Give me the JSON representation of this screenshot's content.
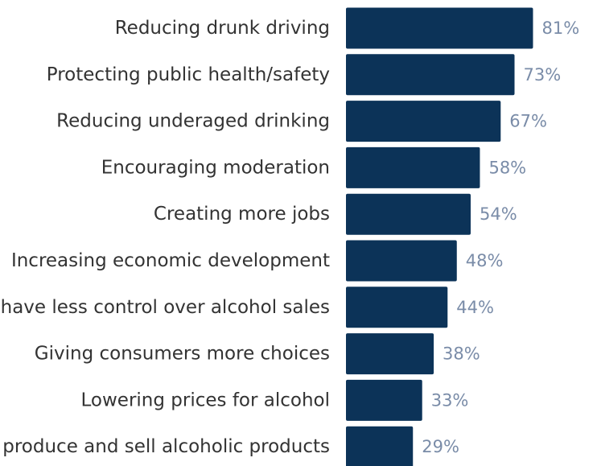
{
  "chart_data": {
    "type": "bar",
    "orientation": "horizontal",
    "categories": [
      "Reducing drunk driving",
      "Protecting public health/safety",
      "Reducing underaged drinking",
      "Encouraging moderation",
      "Creating more jobs",
      "Increasing economic development",
      "have less control over alcohol sales",
      "Giving consumers more choices",
      "Lowering prices for alcohol",
      "produce and sell alcoholic products"
    ],
    "values": [
      81,
      73,
      67,
      58,
      54,
      48,
      44,
      38,
      33,
      29
    ],
    "value_labels": [
      "81%",
      "73%",
      "67%",
      "58%",
      "54%",
      "48%",
      "44%",
      "38%",
      "33%",
      "29%"
    ],
    "xlim": [
      0,
      100
    ],
    "grid": false,
    "legend": "none"
  },
  "colors": {
    "bar": "#0c3358",
    "value_label": "#7a8ca8",
    "category_label": "#333333"
  }
}
